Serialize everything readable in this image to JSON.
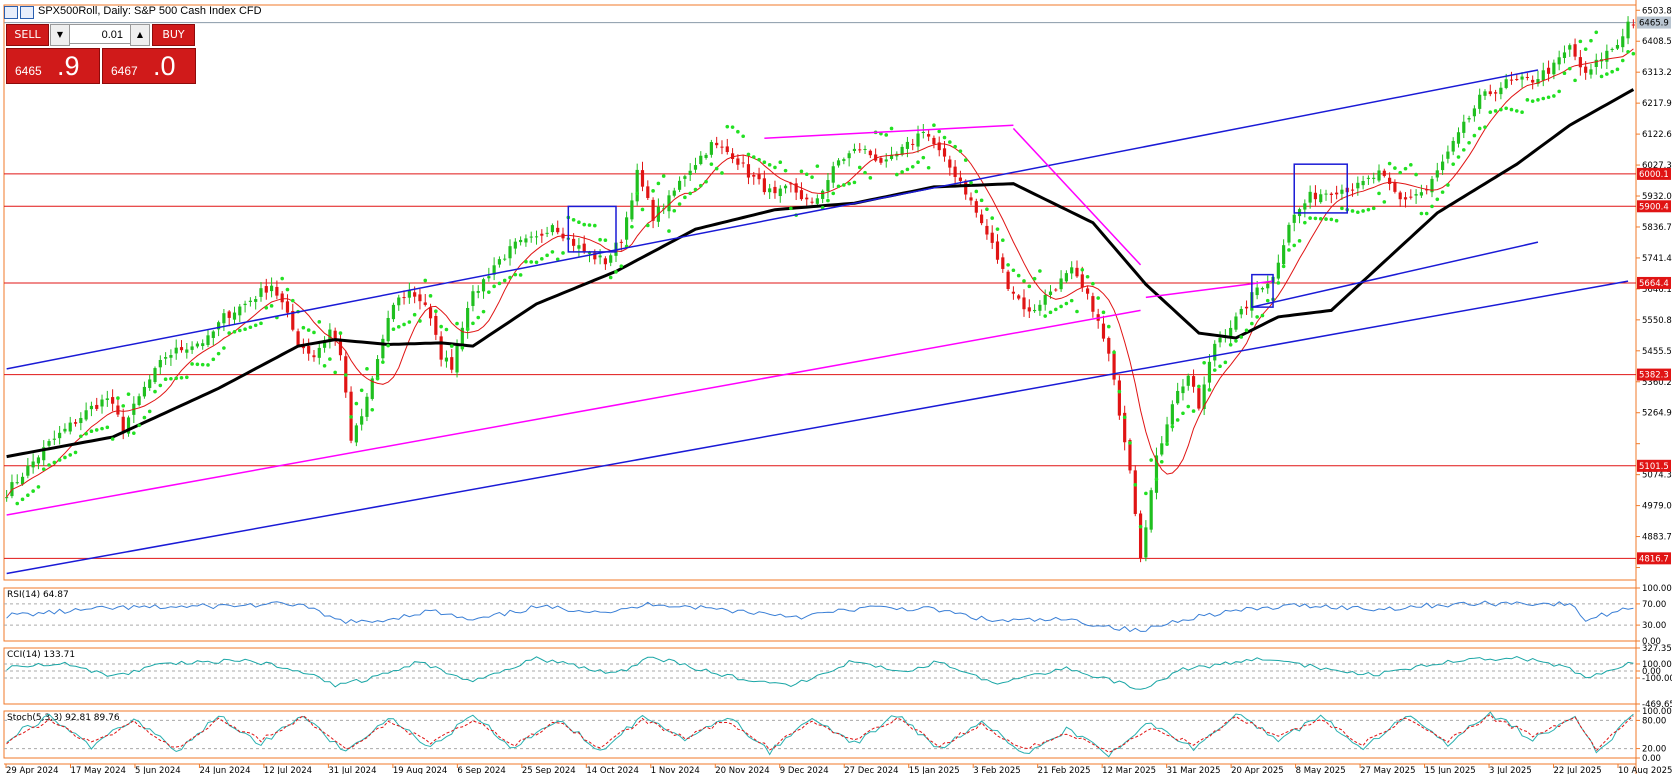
{
  "header": {
    "title": "SPX500Roll, Daily:  S&P 500 Cash Index CFD"
  },
  "trade_panel": {
    "sell_label": "SELL",
    "buy_label": "BUY",
    "lot_value": "0.01",
    "sell_price_small": "6465",
    "sell_price_big": ".9",
    "buy_price_small": "6467",
    "buy_price_big": ".0"
  },
  "colors": {
    "background": "#ffffff",
    "axis": "#f07a2a",
    "bull_candle": "#1fbf1f",
    "bear_candle": "#e01414",
    "sma_long": "#000000",
    "sma_short": "#e01414",
    "psar": "#22e022",
    "trend_blue": "#1a1ad6",
    "trend_magenta": "#ff00ff",
    "hline": "#e01414",
    "rsi": "#3a7fd6",
    "cci": "#1aa6a6",
    "stoch_main": "#2ab0b0",
    "stoch_signal": "#e01414",
    "price_tag_bg": "#e01414",
    "current_tag_bg": "#b8c4d0"
  },
  "chart_data": [
    {
      "type": "candlestick",
      "title": "SPX500Roll, Daily:  S&P 500 Cash Index CFD",
      "ylim": [
        4750,
        6520
      ],
      "y_ticks": [
        6503.8,
        6408.5,
        6313.2,
        6217.9,
        6122.6,
        6027.3,
        5932.0,
        5836.7,
        5741.4,
        5646.1,
        5550.8,
        5455.5,
        5360.2,
        5264.9,
        5169.6,
        5074.3,
        4979.0,
        4883.7,
        4788.4
      ],
      "y_tick_labels": [
        "6503.8",
        "6408.5",
        "6313.2",
        "6217.9",
        "6122.6",
        "6027.3",
        "5932.0",
        "5836.7",
        "5741.4",
        "5646.1",
        "5550.8",
        "5455.5",
        "5360.2",
        "5264.9",
        "",
        "5074.3",
        "4979.0",
        "4883.7",
        ""
      ],
      "x_labels": [
        "29 Apr 2024",
        "17 May 2024",
        "5 Jun 2024",
        "24 Jun 2024",
        "12 Jul 2024",
        "31 Jul 2024",
        "19 Aug 2024",
        "6 Sep 2024",
        "25 Sep 2024",
        "14 Oct 2024",
        "1 Nov 2024",
        "20 Nov 2024",
        "9 Dec 2024",
        "27 Dec 2024",
        "15 Jan 2025",
        "3 Feb 2025",
        "21 Feb 2025",
        "12 Mar 2025",
        "31 Mar 2025",
        "20 Apr 2025",
        "8 May 2025",
        "27 May 2025",
        "15 Jun 2025",
        "3 Jul 2025",
        "22 Jul 2025",
        "10 Aug 2025"
      ],
      "price_path": [
        [
          0,
          5020
        ],
        [
          8,
          5170
        ],
        [
          16,
          5280
        ],
        [
          19,
          5310
        ],
        [
          22,
          5220
        ],
        [
          26,
          5340
        ],
        [
          30,
          5440
        ],
        [
          34,
          5470
        ],
        [
          38,
          5490
        ],
        [
          41,
          5560
        ],
        [
          45,
          5600
        ],
        [
          50,
          5660
        ],
        [
          52,
          5600
        ],
        [
          55,
          5480
        ],
        [
          58,
          5440
        ],
        [
          61,
          5520
        ],
        [
          63,
          5450
        ],
        [
          65,
          5180
        ],
        [
          67,
          5250
        ],
        [
          70,
          5430
        ],
        [
          73,
          5600
        ],
        [
          76,
          5640
        ],
        [
          79,
          5600
        ],
        [
          82,
          5440
        ],
        [
          84,
          5410
        ],
        [
          87,
          5600
        ],
        [
          92,
          5720
        ],
        [
          96,
          5780
        ],
        [
          100,
          5800
        ],
        [
          103,
          5850
        ],
        [
          106,
          5800
        ],
        [
          109,
          5760
        ],
        [
          113,
          5730
        ],
        [
          116,
          5800
        ],
        [
          119,
          6000
        ],
        [
          122,
          5870
        ],
        [
          125,
          5920
        ],
        [
          128,
          6000
        ],
        [
          133,
          6090
        ],
        [
          137,
          6060
        ],
        [
          140,
          6000
        ],
        [
          145,
          5930
        ],
        [
          148,
          5960
        ],
        [
          152,
          5900
        ],
        [
          157,
          6040
        ],
        [
          161,
          6080
        ],
        [
          166,
          6030
        ],
        [
          171,
          6100
        ],
        [
          173,
          6140
        ],
        [
          175,
          6090
        ],
        [
          177,
          6040
        ],
        [
          180,
          5980
        ],
        [
          183,
          5880
        ],
        [
          186,
          5780
        ],
        [
          189,
          5660
        ],
        [
          193,
          5570
        ],
        [
          197,
          5640
        ],
        [
          201,
          5700
        ],
        [
          205,
          5590
        ],
        [
          208,
          5440
        ],
        [
          212,
          5100
        ],
        [
          214,
          4830
        ],
        [
          217,
          5120
        ],
        [
          220,
          5300
        ],
        [
          223,
          5380
        ],
        [
          225,
          5280
        ],
        [
          228,
          5480
        ],
        [
          233,
          5570
        ],
        [
          236,
          5650
        ],
        [
          239,
          5680
        ],
        [
          242,
          5850
        ],
        [
          246,
          5930
        ],
        [
          250,
          5950
        ],
        [
          255,
          5960
        ],
        [
          259,
          6000
        ],
        [
          263,
          5920
        ],
        [
          268,
          5950
        ],
        [
          273,
          6090
        ],
        [
          278,
          6230
        ],
        [
          283,
          6280
        ],
        [
          288,
          6290
        ],
        [
          292,
          6330
        ],
        [
          295,
          6390
        ],
        [
          298,
          6300
        ],
        [
          301,
          6360
        ],
        [
          304,
          6400
        ],
        [
          306,
          6466
        ]
      ],
      "sma_long_path": [
        [
          0,
          5130
        ],
        [
          20,
          5190
        ],
        [
          40,
          5340
        ],
        [
          55,
          5470
        ],
        [
          62,
          5490
        ],
        [
          72,
          5475
        ],
        [
          82,
          5480
        ],
        [
          88,
          5470
        ],
        [
          100,
          5600
        ],
        [
          115,
          5700
        ],
        [
          130,
          5830
        ],
        [
          145,
          5890
        ],
        [
          160,
          5910
        ],
        [
          175,
          5960
        ],
        [
          190,
          5970
        ],
        [
          205,
          5850
        ],
        [
          215,
          5660
        ],
        [
          225,
          5510
        ],
        [
          232,
          5495
        ],
        [
          240,
          5560
        ],
        [
          250,
          5580
        ],
        [
          258,
          5700
        ],
        [
          270,
          5880
        ],
        [
          285,
          6030
        ],
        [
          295,
          6150
        ],
        [
          307,
          6260
        ]
      ],
      "hlines": [
        {
          "value": 6000.1,
          "label": "6000.1"
        },
        {
          "value": 5900.4,
          "label": "5900.4"
        },
        {
          "value": 5664.4,
          "label": "5664.4"
        },
        {
          "value": 5382.3,
          "label": "5382.3"
        },
        {
          "value": 5101.5,
          "label": "5101.5"
        },
        {
          "value": 4816.7,
          "label": "4816.7"
        }
      ],
      "current_price": {
        "value": 6465.9,
        "label": "6465.9"
      },
      "trendlines_blue": [
        [
          [
            0,
            5400
          ],
          [
            289,
            6320
          ]
        ],
        [
          [
            0,
            4770
          ],
          [
            306,
            5670
          ]
        ],
        [
          [
            235,
            5590
          ],
          [
            289,
            5790
          ]
        ]
      ],
      "trendlines_magenta": [
        [
          [
            0,
            4950
          ],
          [
            214,
            5580
          ]
        ],
        [
          [
            143,
            6110
          ],
          [
            190,
            6150
          ]
        ],
        [
          [
            215,
            5620
          ],
          [
            239,
            5670
          ]
        ],
        [
          [
            190,
            6140
          ],
          [
            214,
            5720
          ]
        ]
      ],
      "boxes_blue": [
        {
          "x": [
            106,
            115
          ],
          "y": [
            5760,
            5900
          ]
        },
        {
          "x": [
            243,
            253
          ],
          "y": [
            5880,
            6030
          ]
        },
        {
          "x": [
            235,
            239
          ],
          "y": [
            5590,
            5690
          ]
        }
      ]
    },
    {
      "type": "line",
      "title": "RSI(14) 64.87",
      "ylim": [
        0,
        100
      ],
      "y_ticks": [
        100,
        70,
        30,
        0
      ],
      "y_tick_labels": [
        "100.00",
        "70.00",
        "30.00",
        "0.00"
      ],
      "path": [
        [
          0,
          48
        ],
        [
          20,
          62
        ],
        [
          40,
          66
        ],
        [
          55,
          70
        ],
        [
          62,
          40
        ],
        [
          68,
          34
        ],
        [
          80,
          57
        ],
        [
          88,
          38
        ],
        [
          100,
          64
        ],
        [
          115,
          55
        ],
        [
          122,
          71
        ],
        [
          140,
          55
        ],
        [
          150,
          46
        ],
        [
          162,
          63
        ],
        [
          175,
          60
        ],
        [
          186,
          38
        ],
        [
          200,
          40
        ],
        [
          214,
          18
        ],
        [
          222,
          42
        ],
        [
          230,
          55
        ],
        [
          245,
          68
        ],
        [
          258,
          60
        ],
        [
          270,
          68
        ],
        [
          285,
          72
        ],
        [
          295,
          69
        ],
        [
          298,
          40
        ],
        [
          307,
          64.87
        ]
      ]
    },
    {
      "type": "line",
      "title": "CCI(14) 133.71",
      "ylim": [
        -469.65,
        327.35
      ],
      "y_ticks": [
        327.35,
        100,
        0,
        -100,
        -469.65
      ],
      "y_tick_labels": [
        "327.35",
        "100.00",
        "0.00",
        "-100.00",
        "-469.65"
      ],
      "path": [
        [
          0,
          40
        ],
        [
          10,
          120
        ],
        [
          20,
          -80
        ],
        [
          30,
          110
        ],
        [
          45,
          150
        ],
        [
          55,
          20
        ],
        [
          62,
          -200
        ],
        [
          68,
          -120
        ],
        [
          78,
          130
        ],
        [
          88,
          -150
        ],
        [
          100,
          180
        ],
        [
          115,
          -40
        ],
        [
          122,
          200
        ],
        [
          135,
          -60
        ],
        [
          148,
          -220
        ],
        [
          160,
          150
        ],
        [
          170,
          -20
        ],
        [
          176,
          140
        ],
        [
          186,
          -180
        ],
        [
          200,
          40
        ],
        [
          214,
          -250
        ],
        [
          222,
          20
        ],
        [
          236,
          160
        ],
        [
          245,
          80
        ],
        [
          258,
          -60
        ],
        [
          270,
          120
        ],
        [
          285,
          200
        ],
        [
          295,
          40
        ],
        [
          298,
          -120
        ],
        [
          307,
          133.71
        ]
      ]
    },
    {
      "type": "line",
      "title": "Stoch(5,3,3) 92.81 89.76",
      "ylim": [
        0,
        100
      ],
      "y_ticks": [
        100,
        80,
        20,
        0
      ],
      "y_tick_labels": [
        "100.00",
        "80.00",
        "20.00",
        "0.00"
      ],
      "main_path": [
        [
          0,
          40
        ],
        [
          8,
          90
        ],
        [
          16,
          20
        ],
        [
          24,
          85
        ],
        [
          32,
          15
        ],
        [
          40,
          88
        ],
        [
          48,
          30
        ],
        [
          56,
          92
        ],
        [
          64,
          10
        ],
        [
          72,
          85
        ],
        [
          80,
          25
        ],
        [
          88,
          90
        ],
        [
          96,
          20
        ],
        [
          104,
          85
        ],
        [
          112,
          15
        ],
        [
          120,
          90
        ],
        [
          128,
          35
        ],
        [
          136,
          88
        ],
        [
          144,
          12
        ],
        [
          152,
          86
        ],
        [
          160,
          30
        ],
        [
          168,
          92
        ],
        [
          176,
          18
        ],
        [
          184,
          80
        ],
        [
          192,
          10
        ],
        [
          200,
          60
        ],
        [
          208,
          8
        ],
        [
          216,
          75
        ],
        [
          224,
          20
        ],
        [
          232,
          95
        ],
        [
          240,
          40
        ],
        [
          248,
          88
        ],
        [
          256,
          22
        ],
        [
          264,
          92
        ],
        [
          272,
          30
        ],
        [
          280,
          96
        ],
        [
          288,
          40
        ],
        [
          296,
          92
        ],
        [
          300,
          8
        ],
        [
          307,
          92.81
        ]
      ],
      "signal_path": [
        [
          0,
          35
        ],
        [
          8,
          80
        ],
        [
          16,
          30
        ],
        [
          24,
          75
        ],
        [
          32,
          22
        ],
        [
          40,
          80
        ],
        [
          48,
          38
        ],
        [
          56,
          85
        ],
        [
          64,
          18
        ],
        [
          72,
          76
        ],
        [
          80,
          32
        ],
        [
          88,
          82
        ],
        [
          96,
          28
        ],
        [
          104,
          78
        ],
        [
          112,
          22
        ],
        [
          120,
          82
        ],
        [
          128,
          42
        ],
        [
          136,
          80
        ],
        [
          144,
          20
        ],
        [
          152,
          78
        ],
        [
          160,
          38
        ],
        [
          168,
          85
        ],
        [
          176,
          26
        ],
        [
          184,
          72
        ],
        [
          192,
          18
        ],
        [
          200,
          52
        ],
        [
          208,
          15
        ],
        [
          216,
          66
        ],
        [
          224,
          28
        ],
        [
          232,
          86
        ],
        [
          240,
          48
        ],
        [
          248,
          80
        ],
        [
          256,
          30
        ],
        [
          264,
          84
        ],
        [
          272,
          38
        ],
        [
          280,
          88
        ],
        [
          288,
          48
        ],
        [
          296,
          85
        ],
        [
          300,
          18
        ],
        [
          307,
          89.76
        ]
      ]
    }
  ]
}
